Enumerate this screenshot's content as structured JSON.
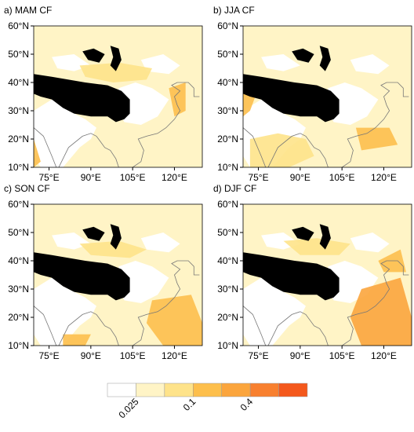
{
  "panels": [
    {
      "title": "a) MAM CF"
    },
    {
      "title": "b) JJA CF"
    },
    {
      "title": "c) SON CF"
    },
    {
      "title": "d) DJF CF"
    }
  ],
  "lat_labels": [
    "60°N",
    "50°N",
    "40°N",
    "30°N",
    "20°N",
    "10°N"
  ],
  "lon_labels": [
    "75°E",
    "90°E",
    "105°E",
    "120°E"
  ],
  "colorbar": {
    "colors": [
      "#ffffff",
      "#fff4c6",
      "#fee38a",
      "#fdbf4c",
      "#fba53d",
      "#f8802f",
      "#f4581c"
    ],
    "labels": [
      "0.025",
      "0.1",
      "0.4"
    ]
  }
}
